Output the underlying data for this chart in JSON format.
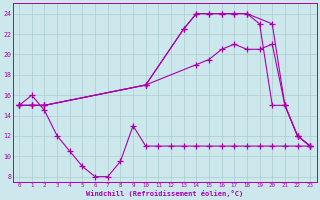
{
  "xlabel": "Windchill (Refroidissement éolien,°C)",
  "background_color": "#cce8ec",
  "grid_color": "#aacccc",
  "line_color": "#aa00aa",
  "x_ticks": [
    0,
    1,
    2,
    3,
    4,
    5,
    6,
    7,
    8,
    9,
    10,
    11,
    12,
    13,
    14,
    15,
    16,
    17,
    18,
    19,
    20,
    21,
    22,
    23
  ],
  "ylim": [
    7.5,
    25
  ],
  "xlim": [
    -0.5,
    23.5
  ],
  "yticks": [
    8,
    10,
    12,
    14,
    16,
    18,
    20,
    22,
    24
  ],
  "line1_x": [
    0,
    1,
    2,
    3,
    4,
    5,
    6,
    7,
    8,
    9,
    10,
    11,
    12,
    13,
    14,
    15,
    16,
    17,
    18,
    19,
    20,
    21,
    22,
    23
  ],
  "line1_y": [
    15.0,
    16.0,
    14.5,
    12.0,
    10.5,
    9.0,
    8.0,
    8.0,
    9.5,
    13.0,
    11.0,
    11.0,
    11.0,
    11.0,
    11.0,
    11.0,
    11.0,
    11.0,
    11.0,
    11.0,
    11.0,
    11.0,
    11.0,
    11.0
  ],
  "line2_x": [
    0,
    1,
    2,
    10,
    14,
    15,
    16,
    17,
    18,
    19,
    20,
    21,
    22,
    23
  ],
  "line2_y": [
    15.0,
    15.0,
    15.0,
    17.0,
    19.0,
    19.5,
    20.5,
    21.0,
    20.5,
    20.5,
    21.0,
    15.0,
    12.0,
    11.0
  ],
  "line3_x": [
    0,
    1,
    2,
    10,
    13,
    14,
    15,
    16,
    17,
    18,
    19,
    20,
    21,
    22,
    23
  ],
  "line3_y": [
    15.0,
    15.0,
    15.0,
    17.0,
    22.5,
    24.0,
    24.0,
    24.0,
    24.0,
    24.0,
    23.0,
    15.0,
    15.0,
    12.0,
    11.0
  ],
  "line4_x": [
    0,
    1,
    2,
    10,
    13,
    14,
    15,
    16,
    17,
    18,
    20,
    21,
    22,
    23
  ],
  "line4_y": [
    15.0,
    15.0,
    15.0,
    17.0,
    22.5,
    24.0,
    24.0,
    24.0,
    24.0,
    24.0,
    23.0,
    15.0,
    12.0,
    11.0
  ]
}
